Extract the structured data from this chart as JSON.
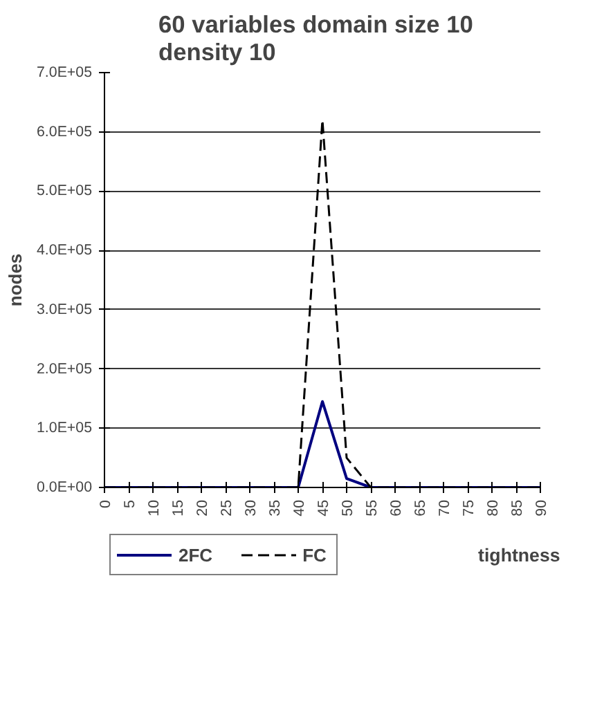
{
  "chart_data": {
    "type": "line",
    "title": "60 variables   domain size 10\ndensity 10",
    "xlabel": "tightness",
    "ylabel": "nodes",
    "x": [
      0,
      5,
      10,
      15,
      20,
      25,
      30,
      35,
      40,
      45,
      50,
      55,
      60,
      65,
      70,
      75,
      80,
      85,
      90
    ],
    "series": [
      {
        "name": "2FC",
        "color": "#000080",
        "line_style": "solid",
        "values": [
          0,
          0,
          0,
          0,
          0,
          0,
          0,
          0,
          0,
          145000,
          15000,
          0,
          0,
          0,
          0,
          0,
          0,
          0,
          0
        ]
      },
      {
        "name": "FC",
        "color": "#000000",
        "line_style": "dashed",
        "values": [
          0,
          0,
          0,
          0,
          0,
          0,
          0,
          0,
          0,
          620000,
          50000,
          0,
          0,
          0,
          0,
          0,
          0,
          0,
          0
        ]
      }
    ],
    "xlim": [
      0,
      90
    ],
    "xticks": [
      0,
      5,
      10,
      15,
      20,
      25,
      30,
      35,
      40,
      45,
      50,
      55,
      60,
      65,
      70,
      75,
      80,
      85,
      90
    ],
    "ylim": [
      0,
      700000
    ],
    "yticks": [
      {
        "value": 0,
        "label": "0.0E+00"
      },
      {
        "value": 100000,
        "label": "1.0E+05"
      },
      {
        "value": 200000,
        "label": "2.0E+05"
      },
      {
        "value": 300000,
        "label": "3.0E+05"
      },
      {
        "value": 400000,
        "label": "4.0E+05"
      },
      {
        "value": 500000,
        "label": "5.0E+05"
      },
      {
        "value": 600000,
        "label": "6.0E+05"
      },
      {
        "value": 700000,
        "label": "7.0E+05"
      }
    ],
    "grid": "y",
    "legend": "bottom left",
    "marker": "none"
  }
}
